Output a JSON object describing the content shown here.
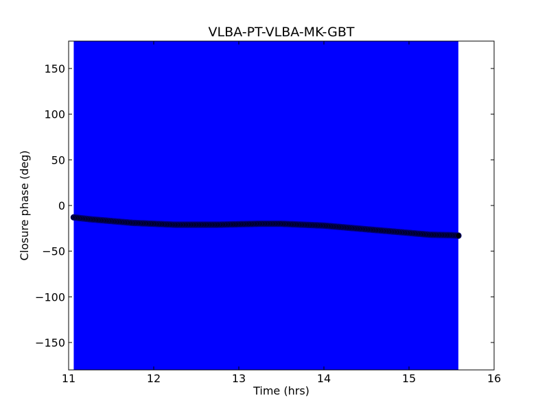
{
  "chart_data": {
    "type": "scatter",
    "title": "VLBA-PT-VLBA-MK-GBT",
    "xlabel": "Time (hrs)",
    "ylabel": "Closure phase (deg)",
    "xlim": [
      11,
      16
    ],
    "ylim": [
      -180,
      180
    ],
    "x_ticks": [
      11,
      12,
      13,
      14,
      15,
      16
    ],
    "y_ticks": [
      -150,
      -100,
      -50,
      0,
      50,
      100,
      150
    ],
    "x_tick_labels": [
      "11",
      "12",
      "13",
      "14",
      "15",
      "16"
    ],
    "y_tick_labels": [
      "−150",
      "−100",
      "−50",
      "0",
      "50",
      "100",
      "150"
    ],
    "grid": false,
    "shaded_band": {
      "x_range": [
        11.06,
        15.58
      ],
      "color": "#0000ff"
    },
    "series": [
      {
        "color": "#000000",
        "marker_edge_color": "#00007f",
        "x": [
          11.06,
          11.25,
          11.5,
          11.75,
          12.0,
          12.25,
          12.5,
          12.75,
          13.0,
          13.25,
          13.5,
          13.75,
          14.0,
          14.25,
          14.5,
          14.75,
          15.0,
          15.25,
          15.5,
          15.58
        ],
        "y": [
          -13,
          -15,
          -17,
          -19,
          -20,
          -21,
          -21,
          -21,
          -20.5,
          -20,
          -20,
          -21,
          -22,
          -24,
          -26,
          -28,
          -30,
          -32,
          -32.5,
          -33
        ]
      }
    ]
  }
}
